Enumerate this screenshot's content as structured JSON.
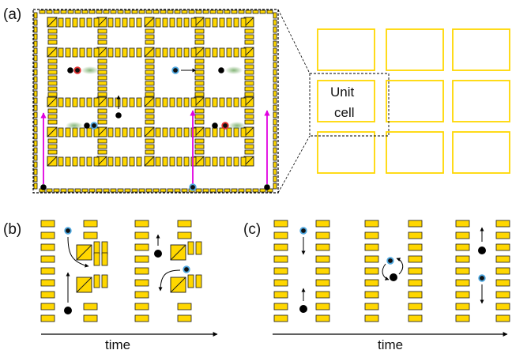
{
  "panel_labels": {
    "a": "(a)",
    "b": "(b)",
    "c": "(c)"
  },
  "unit_cell_label": {
    "line1": "Unit",
    "line2": "cell"
  },
  "time_labels": {
    "b": "time",
    "c": "time"
  },
  "colors": {
    "electrode_fill": "#FFD700",
    "electrode_stroke": "#1a1a1a",
    "outline_yellow": "#FFD700",
    "arrow_magenta": "#E000E0",
    "ion_dark": "#000000",
    "ion_blue": "#4FA8E0",
    "ion_red": "#E03030",
    "glow_green": "#6FA860"
  }
}
